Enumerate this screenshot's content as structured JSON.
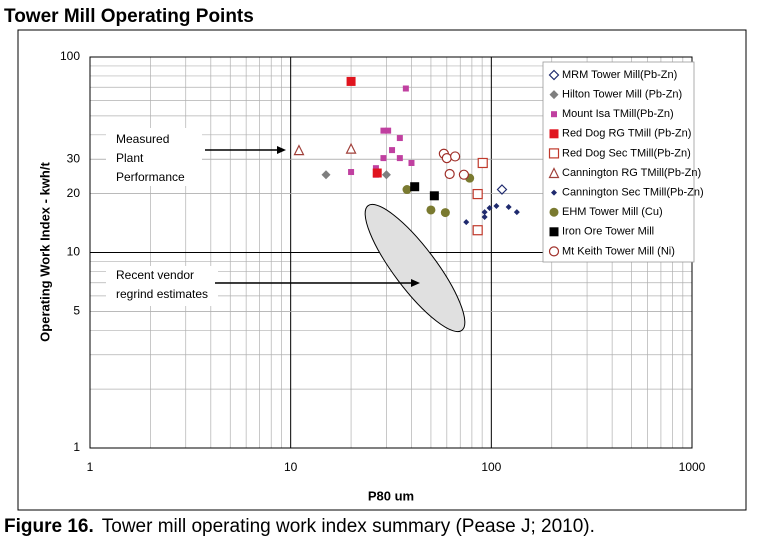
{
  "chart_data": {
    "type": "scatter",
    "title": "Tower Mill Operating Points",
    "x_label": "P80 um",
    "y_label": "Operating Work Index - kwh/t",
    "xscale": "log",
    "yscale": "log",
    "grid": true,
    "legend": "upper right",
    "xlim": [
      1,
      1000
    ],
    "xticks": [
      1,
      10,
      100,
      1000
    ],
    "ylim": [
      1,
      100
    ],
    "yticks": [
      1,
      5,
      10,
      20,
      30,
      100
    ],
    "series": [
      {
        "name": "MRM Tower Mill(Pb-Zn)",
        "color": "#1f2a6e",
        "marker": "diamond-open",
        "x": [
          113
        ],
        "values": [
          21
        ]
      },
      {
        "name": "Hilton  Tower Mill (Pb-Zn)",
        "color": "#7f7f7f",
        "marker": "diamond",
        "x": [
          15,
          30
        ],
        "values": [
          25,
          25
        ]
      },
      {
        "name": "Mount Isa TMill(Pb-Zn)",
        "color": "#c040a0",
        "marker": "square-small",
        "x": [
          37.5,
          29,
          30.6,
          35,
          32,
          29,
          35,
          26.6,
          40,
          20,
          26.6
        ],
        "values": [
          69,
          42,
          42,
          38.5,
          33.4,
          30.4,
          30.4,
          27,
          28.7,
          25.8,
          25
        ]
      },
      {
        "name": "Red Dog RG TMill (Pb-Zn)",
        "color": "#e0141e",
        "marker": "square",
        "x": [
          20,
          27
        ],
        "values": [
          75,
          25.5
        ]
      },
      {
        "name": "Red Dog Sec TMill(Pb-Zn)",
        "color": "#c0392b",
        "marker": "square-open",
        "x": [
          90.6,
          85.5,
          85.5
        ],
        "values": [
          28.7,
          19.9,
          13
        ]
      },
      {
        "name": "Cannington RG TMill(Pb-Zn)",
        "color": "#a0403a",
        "marker": "triangle-open",
        "x": [
          11,
          20
        ],
        "values": [
          33.4,
          34
        ]
      },
      {
        "name": "Cannington Sec TMill(Pb-Zn)",
        "color": "#1f2a6e",
        "marker": "diamond-small",
        "x": [
          75,
          92.6,
          98,
          106,
          122,
          134,
          92.6
        ],
        "values": [
          14.3,
          16.1,
          16.9,
          17.3,
          17.1,
          16.1,
          15.2
        ]
      },
      {
        "name": "EHM Tower Mill (Cu)",
        "color": "#7a7a30",
        "marker": "circle",
        "x": [
          38,
          50,
          59,
          78
        ],
        "values": [
          21,
          16.5,
          16,
          24
        ]
      },
      {
        "name": "Iron Ore Tower Mill",
        "color": "#000000",
        "marker": "square",
        "x": [
          41.5,
          52
        ],
        "values": [
          21.7,
          19.5
        ]
      },
      {
        "name": "Mt Keith Tower Mill (Ni)",
        "color": "#a0302a",
        "marker": "circle-open",
        "x": [
          58,
          60,
          66,
          62,
          73
        ],
        "values": [
          32,
          30.4,
          31,
          25.2,
          25
        ]
      }
    ],
    "annotations": [
      [
        "Measured",
        "Plant",
        "Performance"
      ],
      [
        "Recent vendor",
        "regrind estimates"
      ]
    ]
  },
  "caption": {
    "label": "Figure 16.",
    "text": "Tower mill operating work index summary (Pease J; 2010)."
  }
}
